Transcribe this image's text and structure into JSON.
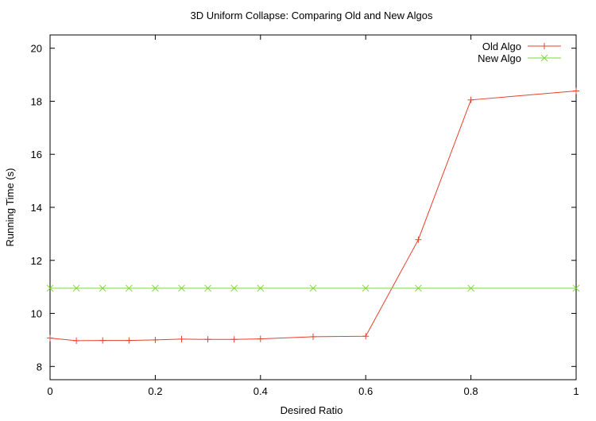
{
  "chart_data": {
    "type": "line",
    "title": "3D Uniform Collapse: Comparing Old and New Algos",
    "xlabel": "Desired Ratio",
    "ylabel": "Running Time (s)",
    "xlim": [
      0,
      1
    ],
    "ylim": [
      7.5,
      20.5
    ],
    "xticks": [
      0,
      0.2,
      0.4,
      0.6,
      0.8,
      1
    ],
    "xtick_labels": [
      "0",
      "0.2",
      "0.4",
      "0.6",
      "0.8",
      "1"
    ],
    "yticks": [
      8,
      10,
      12,
      14,
      16,
      18,
      20
    ],
    "ytick_labels": [
      "8",
      "10",
      "12",
      "14",
      "16",
      "18",
      "20"
    ],
    "grid": false,
    "legend_position": "top-right",
    "series": [
      {
        "name": "Old Algo",
        "color": "#e8412c",
        "marker": "plus",
        "x": [
          0,
          0.05,
          0.1,
          0.15,
          0.2,
          0.25,
          0.3,
          0.35,
          0.4,
          0.5,
          0.6,
          0.7,
          0.8,
          1
        ],
        "values": [
          9.07,
          8.97,
          8.98,
          8.98,
          9.0,
          9.03,
          9.02,
          9.02,
          9.04,
          9.12,
          9.14,
          12.78,
          18.05,
          18.39
        ]
      },
      {
        "name": "New Algo",
        "color": "#7dd63a",
        "marker": "x",
        "x": [
          0,
          0.05,
          0.1,
          0.15,
          0.2,
          0.25,
          0.3,
          0.35,
          0.4,
          0.5,
          0.6,
          0.7,
          0.8,
          1
        ],
        "values": [
          10.95,
          10.95,
          10.95,
          10.95,
          10.95,
          10.95,
          10.95,
          10.95,
          10.95,
          10.95,
          10.95,
          10.95,
          10.95,
          10.95
        ]
      }
    ]
  }
}
